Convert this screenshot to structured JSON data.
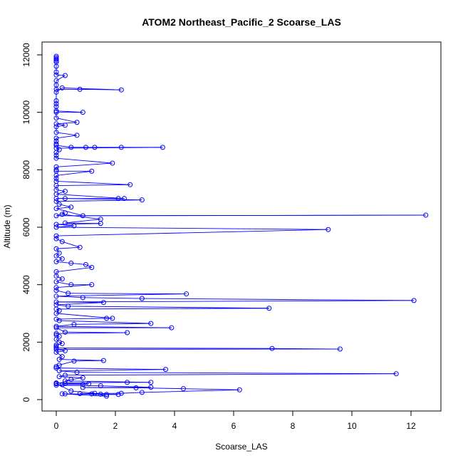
{
  "chart_data": {
    "type": "line",
    "title": "ATOM2 Northeast_Pacific_2 Scoarse_LAS",
    "xlabel": "Scoarse_LAS",
    "ylabel": "Altitude (m)",
    "xlim": [
      0,
      13
    ],
    "ylim": [
      0,
      12000
    ],
    "xticks": [
      0,
      2,
      4,
      6,
      8,
      10,
      12
    ],
    "yticks": [
      0,
      2000,
      4000,
      6000,
      8000,
      10000,
      12000
    ],
    "grid": false,
    "color": "#0000FF",
    "series": [
      {
        "marker": "open-circle",
        "points": [
          [
            0.0,
            11950
          ],
          [
            0.0,
            11900
          ],
          [
            0.0,
            11850
          ],
          [
            0.0,
            11800
          ],
          [
            0.0,
            11750
          ],
          [
            0.0,
            11600
          ],
          [
            0.0,
            11400
          ],
          [
            0.0,
            11300
          ],
          [
            0.3,
            11280
          ],
          [
            0.0,
            11100
          ],
          [
            0.0,
            10950
          ],
          [
            0.0,
            10800
          ],
          [
            0.8,
            10800
          ],
          [
            2.2,
            10780
          ],
          [
            0.2,
            10850
          ],
          [
            0.0,
            10700
          ],
          [
            0.0,
            10400
          ],
          [
            0.0,
            10300
          ],
          [
            0.0,
            10200
          ],
          [
            0.0,
            10050
          ],
          [
            0.9,
            10000
          ],
          [
            0.0,
            10000
          ],
          [
            0.0,
            9800
          ],
          [
            0.7,
            9650
          ],
          [
            0.0,
            9600
          ],
          [
            0.3,
            9550
          ],
          [
            0.0,
            9500
          ],
          [
            0.0,
            9300
          ],
          [
            0.7,
            9200
          ],
          [
            0.0,
            9100
          ],
          [
            0.0,
            9000
          ],
          [
            0.0,
            8900
          ],
          [
            0.0,
            8850
          ],
          [
            0.5,
            8780
          ],
          [
            1.0,
            8780
          ],
          [
            1.3,
            8780
          ],
          [
            2.2,
            8780
          ],
          [
            3.6,
            8780
          ],
          [
            0.0,
            8750
          ],
          [
            0.1,
            8700
          ],
          [
            0.0,
            8600
          ],
          [
            0.0,
            8500
          ],
          [
            0.0,
            8400
          ],
          [
            1.9,
            8230
          ],
          [
            0.0,
            8100
          ],
          [
            0.0,
            8000
          ],
          [
            0.0,
            7950
          ],
          [
            1.2,
            7950
          ],
          [
            0.0,
            7800
          ],
          [
            0.0,
            7700
          ],
          [
            0.0,
            7600
          ],
          [
            2.5,
            7480
          ],
          [
            0.0,
            7450
          ],
          [
            0.0,
            7300
          ],
          [
            0.3,
            7250
          ],
          [
            0.0,
            7150
          ],
          [
            2.3,
            7000
          ],
          [
            2.1,
            7000
          ],
          [
            0.0,
            7000
          ],
          [
            0.3,
            7000
          ],
          [
            2.9,
            6950
          ],
          [
            0.0,
            6900
          ],
          [
            0.1,
            6800
          ],
          [
            0.5,
            6700
          ],
          [
            0.0,
            6650
          ],
          [
            0.9,
            6400
          ],
          [
            12.5,
            6420
          ],
          [
            0.0,
            6400
          ],
          [
            0.3,
            6500
          ],
          [
            0.2,
            6450
          ],
          [
            1.5,
            6280
          ],
          [
            0.3,
            6150
          ],
          [
            1.5,
            6130
          ],
          [
            0.0,
            6100
          ],
          [
            0.6,
            6050
          ],
          [
            0.0,
            6000
          ],
          [
            9.2,
            5920
          ],
          [
            0.0,
            5700
          ],
          [
            0.0,
            5600
          ],
          [
            0.2,
            5500
          ],
          [
            0.8,
            5300
          ],
          [
            0.0,
            5250
          ],
          [
            0.1,
            5100
          ],
          [
            0.0,
            5000
          ],
          [
            0.2,
            4900
          ],
          [
            0.0,
            4800
          ],
          [
            0.5,
            4750
          ],
          [
            1.0,
            4700
          ],
          [
            1.2,
            4600
          ],
          [
            0.0,
            4450
          ],
          [
            0.0,
            4300
          ],
          [
            0.2,
            4200
          ],
          [
            0.0,
            4100
          ],
          [
            0.5,
            4000
          ],
          [
            1.2,
            4000
          ],
          [
            0.0,
            3900
          ],
          [
            0.0,
            3800
          ],
          [
            0.4,
            3700
          ],
          [
            4.4,
            3680
          ],
          [
            0.0,
            3600
          ],
          [
            0.9,
            3550
          ],
          [
            2.9,
            3520
          ],
          [
            12.1,
            3450
          ],
          [
            0.0,
            3400
          ],
          [
            1.6,
            3380
          ],
          [
            0.0,
            3300
          ],
          [
            0.4,
            3250
          ],
          [
            7.2,
            3180
          ],
          [
            0.0,
            3150
          ],
          [
            0.1,
            3100
          ],
          [
            0.0,
            3000
          ],
          [
            1.9,
            2830
          ],
          [
            1.7,
            2830
          ],
          [
            0.0,
            2800
          ],
          [
            0.1,
            2750
          ],
          [
            3.2,
            2650
          ],
          [
            0.6,
            2620
          ],
          [
            0.0,
            2550
          ],
          [
            3.9,
            2500
          ],
          [
            0.0,
            2500
          ],
          [
            0.3,
            2350
          ],
          [
            2.4,
            2330
          ],
          [
            0.0,
            2300
          ],
          [
            0.0,
            2250
          ],
          [
            0.1,
            2200
          ],
          [
            0.0,
            2100
          ],
          [
            0.1,
            2000
          ],
          [
            0.2,
            1950
          ],
          [
            0.0,
            1900
          ],
          [
            0.0,
            1850
          ],
          [
            0.0,
            1800
          ],
          [
            7.3,
            1780
          ],
          [
            9.6,
            1760
          ],
          [
            0.0,
            1750
          ],
          [
            0.3,
            1700
          ],
          [
            0.0,
            1650
          ],
          [
            0.2,
            1500
          ],
          [
            0.1,
            1400
          ],
          [
            1.6,
            1360
          ],
          [
            0.6,
            1340
          ],
          [
            0.1,
            1200
          ],
          [
            0.0,
            1150
          ],
          [
            0.0,
            1100
          ],
          [
            3.7,
            1050
          ],
          [
            0.1,
            1000
          ],
          [
            0.7,
            950
          ],
          [
            11.5,
            900
          ],
          [
            0.3,
            850
          ],
          [
            0.1,
            800
          ],
          [
            0.9,
            760
          ],
          [
            0.5,
            700
          ],
          [
            0.3,
            650
          ],
          [
            3.2,
            600
          ],
          [
            2.4,
            600
          ],
          [
            0.0,
            580
          ],
          [
            0.3,
            560
          ],
          [
            1.1,
            550
          ],
          [
            0.9,
            530
          ],
          [
            0.2,
            520
          ],
          [
            0.0,
            500
          ],
          [
            1.5,
            480
          ],
          [
            3.2,
            430
          ],
          [
            0.9,
            420
          ],
          [
            2.7,
            410
          ],
          [
            4.3,
            380
          ],
          [
            6.2,
            340
          ],
          [
            2.9,
            250
          ],
          [
            2.2,
            220
          ],
          [
            0.8,
            210
          ],
          [
            1.2,
            200
          ],
          [
            1.5,
            190
          ],
          [
            1.7,
            180
          ],
          [
            2.1,
            180
          ],
          [
            0.3,
            200
          ],
          [
            0.2,
            200
          ],
          [
            1.7,
            120
          ],
          [
            1.3,
            220
          ],
          [
            0.5,
            300
          ],
          [
            0.0,
            560
          ],
          [
            0.0,
            550
          ]
        ]
      }
    ]
  }
}
